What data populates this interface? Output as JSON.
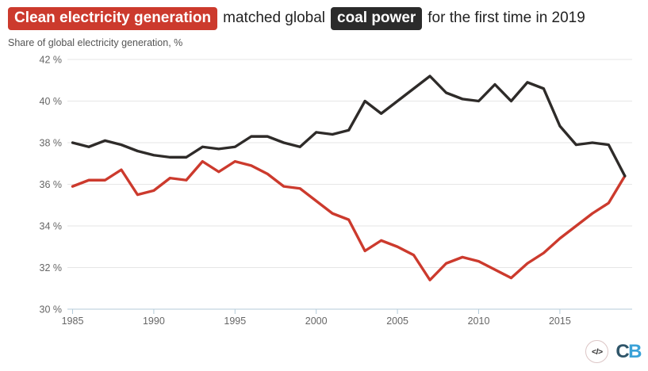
{
  "title": {
    "badge_clean": "Clean electricity generation",
    "middle": "matched global",
    "badge_coal": "coal power",
    "suffix": "for the first time in 2019"
  },
  "subtitle": "Share of global electricity generation, %",
  "colors": {
    "clean_accent": "#cc3a2d",
    "coal_accent": "#2b2b2b",
    "grid": "#e6e6e6",
    "axis": "#b4cbd9",
    "tick_label": "#666666",
    "logo_c": "#2f5569",
    "logo_b": "#3aa2d8"
  },
  "chart_data": {
    "type": "line",
    "x": [
      1985,
      1986,
      1987,
      1988,
      1989,
      1990,
      1991,
      1992,
      1993,
      1994,
      1995,
      1996,
      1997,
      1998,
      1999,
      2000,
      2001,
      2002,
      2003,
      2004,
      2005,
      2006,
      2007,
      2008,
      2009,
      2010,
      2011,
      2012,
      2013,
      2014,
      2015,
      2016,
      2017,
      2018,
      2019
    ],
    "series": [
      {
        "name": "clean electricity generation",
        "color": "#cc3a2d",
        "values": [
          35.9,
          36.2,
          36.2,
          36.7,
          35.5,
          35.7,
          36.3,
          36.2,
          37.1,
          36.6,
          37.1,
          36.9,
          36.5,
          35.9,
          35.8,
          35.2,
          34.6,
          34.3,
          32.8,
          33.3,
          33.0,
          32.6,
          31.4,
          32.2,
          32.5,
          32.3,
          31.9,
          31.5,
          32.2,
          32.7,
          33.4,
          34.0,
          34.6,
          35.1,
          36.4
        ]
      },
      {
        "name": "coal power",
        "color": "#2e2b29",
        "values": [
          38.0,
          37.8,
          38.1,
          37.9,
          37.6,
          37.4,
          37.3,
          37.3,
          37.8,
          37.7,
          37.8,
          38.3,
          38.3,
          38.0,
          37.8,
          38.5,
          38.4,
          38.6,
          40.0,
          39.4,
          40.0,
          40.6,
          41.2,
          40.4,
          40.1,
          40.0,
          40.8,
          40.0,
          40.9,
          40.6,
          38.8,
          37.9,
          38.0,
          37.9,
          36.4
        ]
      }
    ],
    "title": "Clean electricity generation matched global coal power for the first time in 2019",
    "ylabel": "Share of global electricity generation, %",
    "xlabel": "",
    "ylim": [
      30,
      42
    ],
    "yticks": [
      30,
      32,
      34,
      36,
      38,
      40,
      42
    ],
    "ytick_suffix": " %",
    "xticks": [
      1985,
      1990,
      1995,
      2000,
      2005,
      2010,
      2015
    ],
    "grid": true,
    "legend_position": "in-title-badges"
  },
  "footer": {
    "embed_glyph": "</>",
    "logo_c": "C",
    "logo_b": "B"
  }
}
